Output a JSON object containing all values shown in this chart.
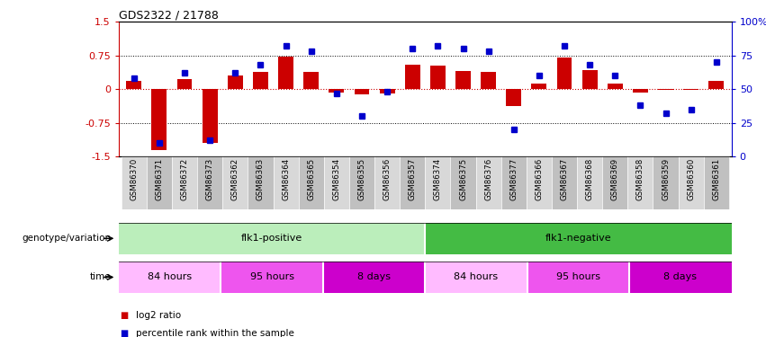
{
  "title": "GDS2322 / 21788",
  "samples": [
    "GSM86370",
    "GSM86371",
    "GSM86372",
    "GSM86373",
    "GSM86362",
    "GSM86363",
    "GSM86364",
    "GSM86365",
    "GSM86354",
    "GSM86355",
    "GSM86356",
    "GSM86357",
    "GSM86374",
    "GSM86375",
    "GSM86376",
    "GSM86377",
    "GSM86366",
    "GSM86367",
    "GSM86368",
    "GSM86369",
    "GSM86358",
    "GSM86359",
    "GSM86360",
    "GSM86361"
  ],
  "log2_ratio": [
    0.18,
    -1.35,
    0.22,
    -1.2,
    0.3,
    0.38,
    0.72,
    0.38,
    -0.08,
    -0.12,
    -0.1,
    0.55,
    0.52,
    0.4,
    0.38,
    -0.38,
    0.12,
    0.7,
    0.42,
    0.12,
    -0.08,
    -0.02,
    -0.02,
    0.18
  ],
  "percentile": [
    58,
    10,
    62,
    12,
    62,
    68,
    82,
    78,
    47,
    30,
    48,
    80,
    82,
    80,
    78,
    20,
    60,
    82,
    68,
    60,
    38,
    32,
    35,
    70
  ],
  "bar_color": "#cc0000",
  "dot_color": "#0000cc",
  "ylim_left": [
    -1.5,
    1.5
  ],
  "ylim_right": [
    0,
    100
  ],
  "yticks_left": [
    -1.5,
    -0.75,
    0.0,
    0.75,
    1.5
  ],
  "ytick_labels_left": [
    "-1.5",
    "-0.75",
    "0",
    "0.75",
    "1.5"
  ],
  "yticks_right": [
    0,
    25,
    50,
    75,
    100
  ],
  "ytick_labels_right": [
    "0",
    "25",
    "50",
    "75",
    "100%"
  ],
  "hline_y": [
    0.75,
    -0.75
  ],
  "genotype_label": "genotype/variation",
  "time_label": "time",
  "flk1_pos_label": "flk1-positive",
  "flk1_neg_label": "flk1-negative",
  "flk1_pos_color": "#bbeebb",
  "flk1_neg_color": "#44bb44",
  "time_groups": [
    {
      "label": "84 hours",
      "start": 0,
      "end": 3,
      "color": "#ffbbff"
    },
    {
      "label": "95 hours",
      "start": 4,
      "end": 7,
      "color": "#ee55ee"
    },
    {
      "label": "8 days",
      "start": 8,
      "end": 11,
      "color": "#cc00cc"
    },
    {
      "label": "84 hours",
      "start": 12,
      "end": 15,
      "color": "#ffbbff"
    },
    {
      "label": "95 hours",
      "start": 16,
      "end": 19,
      "color": "#ee55ee"
    },
    {
      "label": "8 days",
      "start": 20,
      "end": 23,
      "color": "#cc00cc"
    }
  ],
  "legend_items": [
    {
      "label": "log2 ratio",
      "color": "#cc0000"
    },
    {
      "label": "percentile rank within the sample",
      "color": "#0000cc"
    }
  ],
  "sample_col_even": "#d8d8d8",
  "sample_col_odd": "#c0c0c0"
}
